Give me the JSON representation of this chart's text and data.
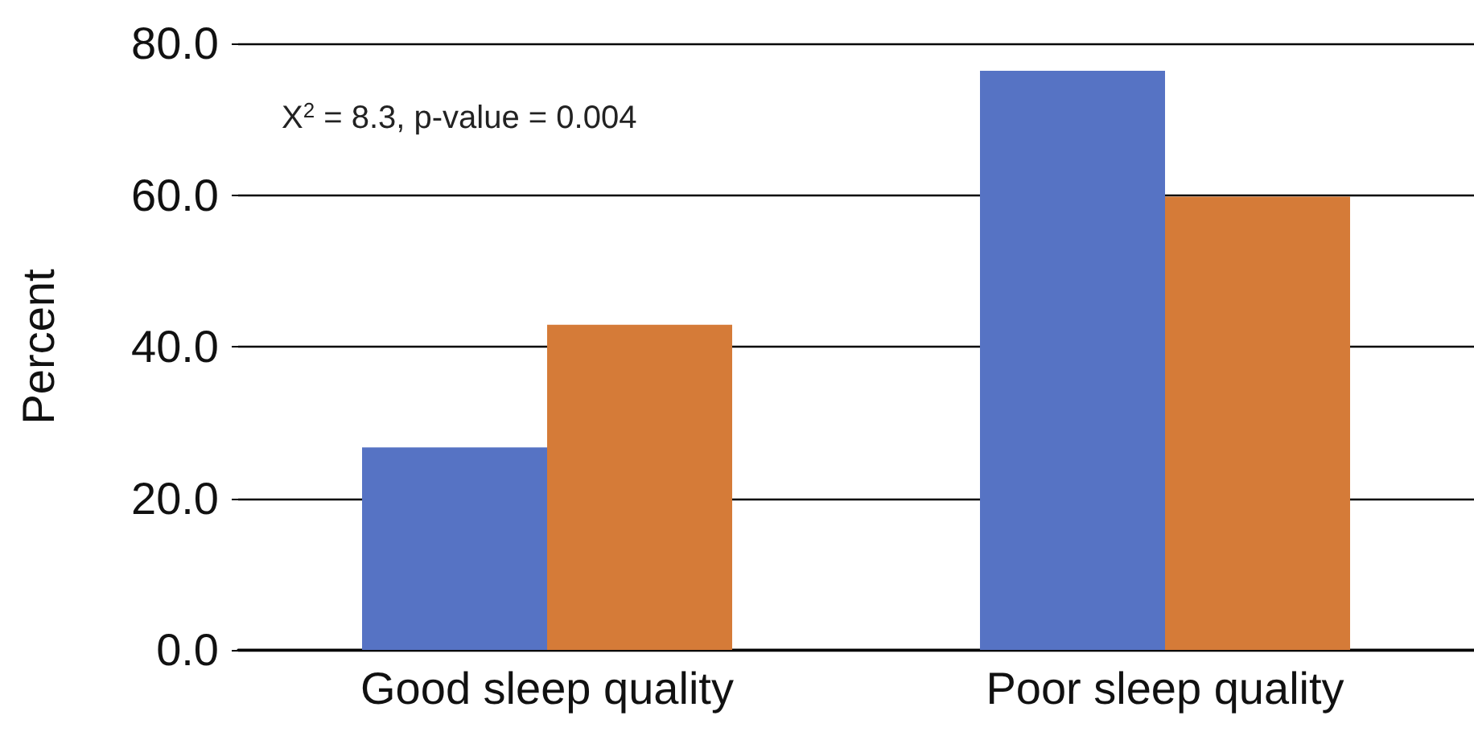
{
  "chart_data": {
    "type": "bar",
    "ylabel": "Percent",
    "categories": [
      "Good sleep quality",
      "Poor sleep quality"
    ],
    "series": [
      {
        "color": "#5673c4",
        "values": [
          26.7,
          76.4
        ]
      },
      {
        "color": "#d57b38",
        "values": [
          42.9,
          59.8
        ]
      }
    ],
    "ylim": [
      0,
      80
    ],
    "yticks": [
      {
        "value": 0,
        "label": "0.0"
      },
      {
        "value": 20,
        "label": "20.0"
      },
      {
        "value": 40,
        "label": "40.0"
      },
      {
        "value": 60,
        "label": "60.0"
      },
      {
        "value": 80,
        "label": "80.0"
      }
    ],
    "grid": "y",
    "annotations": [
      "X$^{2}$ = 8.3, p-value = 0.004"
    ]
  }
}
